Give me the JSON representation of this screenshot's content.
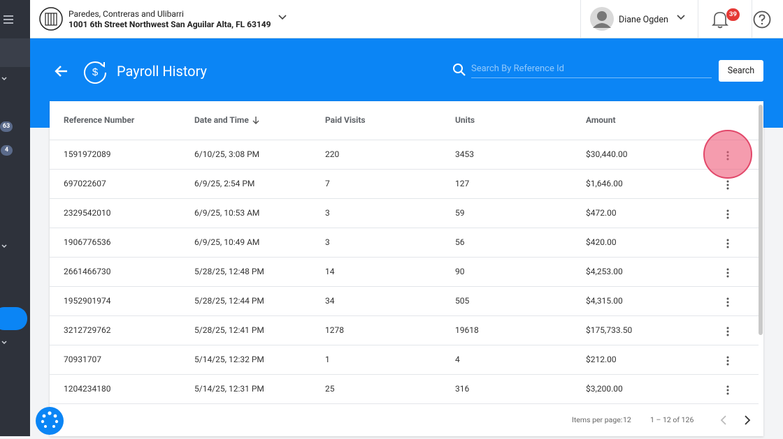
{
  "header": {
    "company": "Paredes, Contreras and Ulibarri",
    "address": "1001 6th Street Northwest San Aguilar Alta, FL 63149",
    "user": "Diane Ogden",
    "notifications": "39"
  },
  "sidebar": {
    "badges": [
      "63",
      "4"
    ]
  },
  "page": {
    "title": "Payroll History",
    "search_placeholder": "Search By Reference Id",
    "search_button": "Search"
  },
  "table": {
    "columns": [
      "Reference Number",
      "Date and Time",
      "Paid Visits",
      "Units",
      "Amount"
    ],
    "rows": [
      [
        "1591972089",
        "6/10/25, 3:08 PM",
        "220",
        "3453",
        "$30,440.00"
      ],
      [
        "697022607",
        "6/9/25, 2:54 PM",
        "7",
        "127",
        "$1,646.00"
      ],
      [
        "2329542010",
        "6/9/25, 10:53 AM",
        "3",
        "59",
        "$472.00"
      ],
      [
        "1906776536",
        "6/9/25, 10:49 AM",
        "3",
        "56",
        "$420.00"
      ],
      [
        "2661466730",
        "5/28/25, 12:48 PM",
        "14",
        "90",
        "$4,253.00"
      ],
      [
        "1952901974",
        "5/28/25, 12:44 PM",
        "34",
        "505",
        "$4,315.00"
      ],
      [
        "3212729762",
        "5/28/25, 12:41 PM",
        "1278",
        "19618",
        "$175,733.50"
      ],
      [
        "70931707",
        "5/14/25, 12:32 PM",
        "1",
        "4",
        "$212.00"
      ],
      [
        "1204234180",
        "5/14/25, 12:31 PM",
        "25",
        "316",
        "$3,200.00"
      ]
    ]
  },
  "pagination": {
    "items_per_page_label": "Items per page:",
    "items_per_page": "12",
    "range": "1 – 12 of 126"
  }
}
